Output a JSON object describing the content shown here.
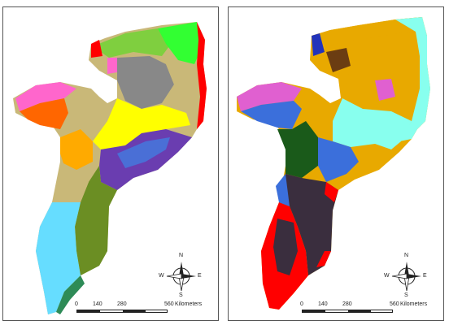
{
  "maps": [
    {
      "name": "left-map",
      "colors": [
        "#c9b878",
        "#ff0000",
        "#ff66cc",
        "#ff6600",
        "#ffff00",
        "#7fcf3f",
        "#32ff32",
        "#888888",
        "#6b8e23",
        "#4a6fd6",
        "#6a3db0",
        "#66ddff",
        "#ffaa00",
        "#2e8b57"
      ]
    },
    {
      "name": "right-map",
      "colors": [
        "#3a2e3e",
        "#ff0000",
        "#3b6fdb",
        "#e8a900",
        "#88ffee",
        "#1a5a1a",
        "#e060d0",
        "#6b3d12",
        "#2233bb",
        "#b0b0b0"
      ]
    }
  ],
  "compass": {
    "n": "N",
    "s": "S",
    "e": "E",
    "w": "W"
  },
  "scale": {
    "ticks": [
      "0",
      "140",
      "280",
      "560"
    ],
    "unit": "Kilometers"
  }
}
